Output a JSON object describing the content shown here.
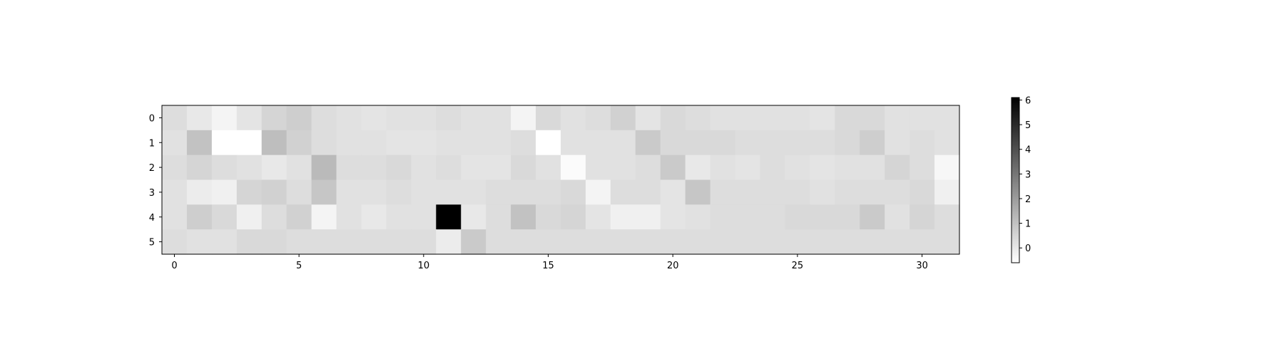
{
  "chart_data": {
    "type": "heatmap",
    "title": "",
    "xlabel": "",
    "ylabel": "",
    "colormap": "grayscale (white = low, black = high)",
    "grid": false,
    "n_cols": 32,
    "n_rows": 6,
    "x_ticks": [
      0,
      5,
      10,
      15,
      20,
      25,
      30
    ],
    "x_tick_labels": [
      "0",
      "5",
      "10",
      "15",
      "20",
      "25",
      "30"
    ],
    "y_ticks": [
      0,
      1,
      2,
      3,
      4,
      5
    ],
    "y_tick_labels": [
      "0",
      "1",
      "2",
      "3",
      "4",
      "5"
    ],
    "color_range": [
      -0.6,
      6.1
    ],
    "colorbar": {
      "placement": "right",
      "ticks": [
        0,
        1,
        2,
        3,
        4,
        5,
        6
      ],
      "tick_labels": [
        "0",
        "1",
        "2",
        "3",
        "4",
        "5",
        "6"
      ]
    },
    "values": [
      [
        0.3,
        0.0,
        -0.3,
        0.1,
        0.5,
        0.7,
        0.3,
        0.2,
        0.1,
        0.2,
        0.2,
        0.3,
        0.2,
        0.2,
        -0.3,
        0.4,
        0.2,
        0.3,
        0.6,
        0.1,
        0.4,
        0.3,
        0.2,
        0.2,
        0.2,
        0.2,
        0.1,
        0.4,
        0.4,
        0.2,
        0.2,
        0.2
      ],
      [
        0.2,
        1.0,
        -0.6,
        -0.6,
        1.1,
        0.6,
        0.3,
        0.2,
        0.2,
        0.1,
        0.1,
        0.2,
        0.2,
        0.2,
        0.3,
        -0.6,
        0.2,
        0.2,
        0.2,
        0.8,
        0.4,
        0.4,
        0.4,
        0.3,
        0.3,
        0.3,
        0.3,
        0.4,
        0.7,
        0.2,
        0.3,
        0.2
      ],
      [
        0.3,
        0.5,
        0.3,
        0.2,
        0.0,
        0.2,
        1.2,
        0.3,
        0.3,
        0.4,
        0.2,
        0.3,
        0.1,
        0.1,
        0.4,
        0.2,
        -0.5,
        0.2,
        0.2,
        0.3,
        0.8,
        0.0,
        0.2,
        0.1,
        0.3,
        0.2,
        0.1,
        0.2,
        0.2,
        0.5,
        0.3,
        -0.4
      ],
      [
        0.2,
        -0.1,
        -0.2,
        0.5,
        0.6,
        0.3,
        0.9,
        0.2,
        0.2,
        0.3,
        0.2,
        0.2,
        0.2,
        0.3,
        0.3,
        0.3,
        0.4,
        -0.3,
        0.3,
        0.3,
        0.1,
        0.9,
        0.3,
        0.3,
        0.3,
        0.3,
        0.2,
        0.3,
        0.3,
        0.3,
        0.4,
        -0.2
      ],
      [
        0.2,
        0.7,
        0.4,
        -0.2,
        0.3,
        0.6,
        -0.3,
        0.2,
        0.0,
        0.2,
        0.2,
        6.1,
        0.0,
        0.3,
        1.0,
        0.4,
        0.5,
        0.1,
        -0.2,
        -0.2,
        0.1,
        0.2,
        0.3,
        0.3,
        0.3,
        0.4,
        0.4,
        0.4,
        0.8,
        0.2,
        0.5,
        0.3
      ],
      [
        0.3,
        0.2,
        0.2,
        0.4,
        0.4,
        0.3,
        0.3,
        0.3,
        0.3,
        0.3,
        0.3,
        -0.1,
        0.8,
        0.3,
        0.3,
        0.3,
        0.3,
        0.3,
        0.3,
        0.3,
        0.3,
        0.3,
        0.3,
        0.3,
        0.3,
        0.3,
        0.3,
        0.3,
        0.3,
        0.3,
        0.3,
        0.3
      ]
    ]
  }
}
